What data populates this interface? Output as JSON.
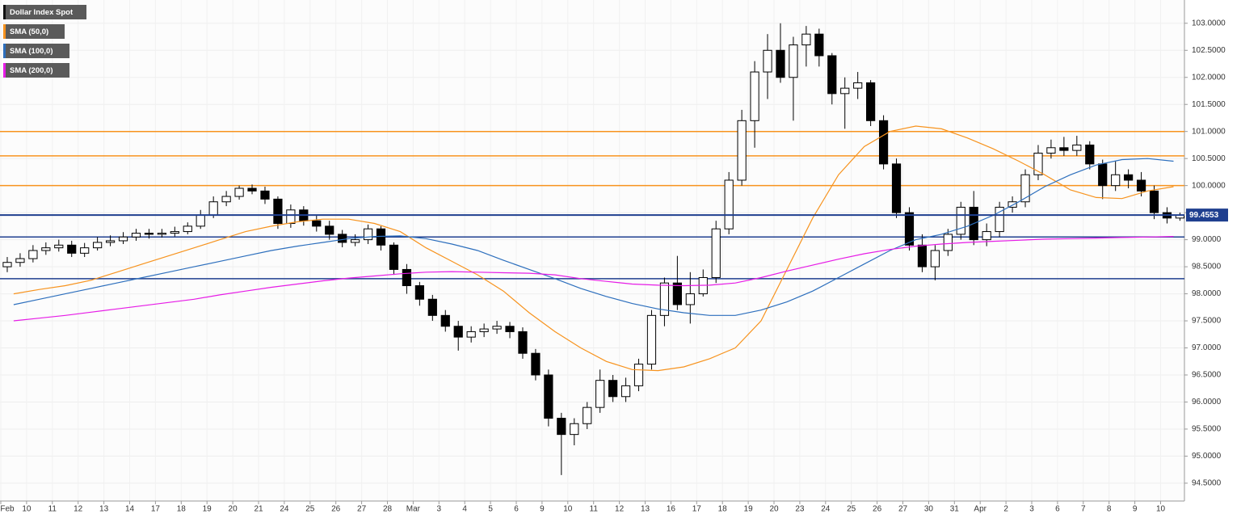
{
  "chart_data": {
    "type": "candlestick",
    "categories": [
      "Feb",
      "10",
      "11",
      "12",
      "13",
      "14",
      "17",
      "18",
      "19",
      "20",
      "21",
      "24",
      "25",
      "26",
      "27",
      "28",
      "Mar",
      "3",
      "4",
      "5",
      "6",
      "9",
      "10",
      "11",
      "12",
      "13",
      "16",
      "17",
      "18",
      "19",
      "20",
      "23",
      "24",
      "25",
      "26",
      "27",
      "30",
      "31",
      "Apr",
      "2",
      "3",
      "6",
      "7",
      "8",
      "9",
      "10"
    ],
    "candles_per_category": 2,
    "series": [
      {
        "name": "Dollar Index Spot",
        "color": "#000000",
        "open": [
          98.5,
          98.58,
          98.65,
          98.8,
          98.85,
          98.9,
          98.75,
          98.85,
          98.95,
          98.98,
          99.05,
          99.12,
          99.1,
          99.12,
          99.15,
          99.25,
          99.45,
          99.7,
          99.8,
          99.95,
          99.9,
          99.75,
          99.3,
          99.55,
          99.35,
          99.25,
          99.1,
          98.95,
          99.0,
          99.2,
          98.9,
          98.45,
          98.15,
          97.9,
          97.6,
          97.4,
          97.2,
          97.3,
          97.35,
          97.4,
          97.3,
          96.9,
          96.5,
          95.7,
          95.4,
          95.6,
          95.9,
          96.4,
          96.1,
          96.3,
          96.7,
          97.6,
          98.2,
          97.8,
          98.0,
          98.3,
          99.2,
          100.1,
          101.2,
          102.1,
          102.5,
          102.0,
          102.6,
          102.8,
          102.4,
          101.7,
          101.8,
          101.9,
          101.2,
          100.4,
          99.5,
          98.9,
          98.5,
          98.8,
          99.1,
          99.6,
          99.0,
          99.15,
          99.6,
          99.7,
          100.2,
          100.6,
          100.7,
          100.65,
          100.75,
          100.4,
          100.0,
          100.2,
          100.1,
          99.9,
          99.5,
          99.4
        ],
        "high": [
          98.68,
          98.75,
          98.9,
          98.95,
          99.0,
          98.98,
          98.94,
          99.05,
          99.08,
          99.14,
          99.2,
          99.2,
          99.2,
          99.24,
          99.32,
          99.55,
          99.8,
          99.9,
          100.0,
          100.02,
          99.98,
          99.8,
          99.65,
          99.62,
          99.45,
          99.35,
          99.18,
          99.1,
          99.28,
          99.25,
          98.95,
          98.55,
          98.22,
          97.98,
          97.7,
          97.5,
          97.4,
          97.45,
          97.5,
          97.48,
          97.38,
          96.98,
          96.6,
          95.8,
          95.7,
          96.0,
          96.6,
          96.5,
          96.45,
          96.8,
          97.7,
          98.3,
          98.7,
          98.4,
          98.45,
          99.35,
          100.25,
          101.4,
          102.3,
          102.8,
          103.0,
          102.75,
          102.95,
          102.9,
          102.45,
          102.0,
          102.1,
          101.95,
          101.3,
          100.5,
          99.6,
          99.1,
          98.9,
          99.2,
          99.7,
          99.9,
          99.3,
          99.7,
          99.8,
          100.3,
          100.75,
          100.85,
          100.9,
          100.92,
          100.82,
          100.48,
          100.45,
          100.3,
          100.25,
          100.0,
          99.6,
          99.5
        ],
        "low": [
          98.4,
          98.5,
          98.58,
          98.72,
          98.78,
          98.68,
          98.68,
          98.8,
          98.88,
          98.92,
          98.98,
          99.02,
          99.04,
          99.06,
          99.1,
          99.2,
          99.4,
          99.62,
          99.74,
          99.84,
          99.66,
          99.2,
          99.22,
          99.26,
          99.15,
          99.0,
          98.86,
          98.88,
          98.92,
          98.8,
          98.35,
          98.0,
          97.78,
          97.5,
          97.3,
          96.95,
          97.1,
          97.2,
          97.26,
          97.18,
          96.8,
          96.4,
          95.55,
          94.65,
          95.2,
          95.5,
          95.8,
          96.0,
          96.0,
          96.2,
          96.6,
          97.4,
          97.7,
          97.45,
          97.95,
          98.2,
          99.1,
          100.0,
          100.7,
          101.6,
          101.9,
          101.2,
          102.2,
          102.2,
          101.5,
          101.05,
          101.6,
          101.1,
          100.3,
          99.4,
          98.8,
          98.4,
          98.25,
          98.7,
          99.0,
          98.9,
          98.88,
          99.05,
          99.5,
          99.6,
          100.1,
          100.5,
          100.55,
          100.55,
          100.3,
          99.75,
          99.9,
          99.95,
          99.8,
          99.38,
          99.3,
          99.35
        ],
        "close": [
          98.58,
          98.65,
          98.8,
          98.85,
          98.9,
          98.75,
          98.85,
          98.95,
          98.98,
          99.05,
          99.12,
          99.1,
          99.12,
          99.15,
          99.25,
          99.45,
          99.7,
          99.8,
          99.95,
          99.9,
          99.75,
          99.3,
          99.55,
          99.35,
          99.25,
          99.1,
          98.95,
          99.0,
          99.2,
          98.9,
          98.45,
          98.15,
          97.9,
          97.6,
          97.4,
          97.2,
          97.3,
          97.35,
          97.4,
          97.3,
          96.9,
          96.5,
          95.7,
          95.4,
          95.6,
          95.9,
          96.4,
          96.1,
          96.3,
          96.7,
          97.6,
          98.2,
          97.8,
          98.0,
          98.3,
          99.2,
          100.1,
          101.2,
          102.1,
          102.5,
          102.0,
          102.6,
          102.8,
          102.4,
          101.7,
          101.8,
          101.9,
          101.2,
          100.4,
          99.5,
          98.9,
          98.5,
          98.8,
          99.1,
          99.6,
          99.0,
          99.15,
          99.6,
          99.7,
          100.2,
          100.6,
          100.7,
          100.65,
          100.75,
          100.4,
          100.0,
          100.2,
          100.1,
          99.9,
          99.5,
          99.4,
          99.45
        ]
      },
      {
        "name": "SMA (50,0)",
        "color": "#f7931e",
        "values": [
          98.0,
          98.08,
          98.15,
          98.25,
          98.4,
          98.55,
          98.7,
          98.85,
          99.0,
          99.15,
          99.25,
          99.33,
          99.38,
          99.38,
          99.3,
          99.15,
          98.85,
          98.6,
          98.35,
          98.05,
          97.65,
          97.3,
          97.0,
          96.75,
          96.6,
          96.58,
          96.65,
          96.8,
          97.0,
          97.5,
          98.45,
          99.4,
          100.2,
          100.72,
          101.0,
          101.1,
          101.05,
          100.88,
          100.68,
          100.45,
          100.2,
          99.92,
          99.78,
          99.76,
          99.9,
          99.98
        ]
      },
      {
        "name": "SMA (100,0)",
        "color": "#2d6fbd",
        "values": [
          97.8,
          97.9,
          98.0,
          98.1,
          98.2,
          98.3,
          98.4,
          98.5,
          98.6,
          98.7,
          98.8,
          98.88,
          98.95,
          99.02,
          99.06,
          99.07,
          99.02,
          98.92,
          98.8,
          98.62,
          98.45,
          98.28,
          98.1,
          97.95,
          97.82,
          97.72,
          97.65,
          97.6,
          97.6,
          97.7,
          97.85,
          98.05,
          98.3,
          98.55,
          98.8,
          99.0,
          99.1,
          99.25,
          99.45,
          99.7,
          99.98,
          100.2,
          100.38,
          100.48,
          100.5,
          100.45
        ]
      },
      {
        "name": "SMA (200,0)",
        "color": "#e61ce6",
        "values": [
          97.5,
          97.55,
          97.6,
          97.66,
          97.72,
          97.78,
          97.84,
          97.9,
          97.98,
          98.05,
          98.12,
          98.18,
          98.24,
          98.29,
          98.33,
          98.37,
          98.4,
          98.41,
          98.4,
          98.39,
          98.38,
          98.35,
          98.28,
          98.23,
          98.18,
          98.16,
          98.15,
          98.16,
          98.2,
          98.3,
          98.42,
          98.53,
          98.64,
          98.74,
          98.82,
          98.88,
          98.92,
          98.95,
          98.97,
          98.99,
          99.01,
          99.02,
          99.03,
          99.04,
          99.05,
          99.06
        ]
      }
    ],
    "levels": [
      {
        "value": 101.0,
        "color": "#f7931e"
      },
      {
        "value": 100.55,
        "color": "#f7931e"
      },
      {
        "value": 100.0,
        "color": "#f7931e"
      },
      {
        "value": 99.05,
        "color": "#1f3f8f"
      },
      {
        "value": 98.28,
        "color": "#1f3f8f"
      }
    ],
    "last_price": 99.4553,
    "last_price_color": "#1f3f8f",
    "ylim": [
      94.17,
      103.43
    ],
    "yticks": [
      {
        "value": 94.5,
        "label": "94.5000"
      },
      {
        "value": 95.0,
        "label": "95.0000"
      },
      {
        "value": 95.5,
        "label": "95.5000"
      },
      {
        "value": 96.0,
        "label": "96.0000"
      },
      {
        "value": 96.5,
        "label": "96.5000"
      },
      {
        "value": 97.0,
        "label": "97.0000"
      },
      {
        "value": 97.5,
        "label": "97.5000"
      },
      {
        "value": 98.0,
        "label": "98.0000"
      },
      {
        "value": 98.5,
        "label": "98.5000"
      },
      {
        "value": 99.0,
        "label": "99.0000"
      },
      {
        "value": 99.5,
        "label": "99.5000"
      },
      {
        "value": 100.0,
        "label": "100.0000"
      },
      {
        "value": 100.5,
        "label": "100.5000"
      },
      {
        "value": 101.0,
        "label": "101.0000"
      },
      {
        "value": 101.5,
        "label": "101.5000"
      },
      {
        "value": 102.0,
        "label": "102.0000"
      },
      {
        "value": 102.5,
        "label": "102.5000"
      },
      {
        "value": 103.0,
        "label": "103.0000"
      }
    ],
    "grid": true
  }
}
